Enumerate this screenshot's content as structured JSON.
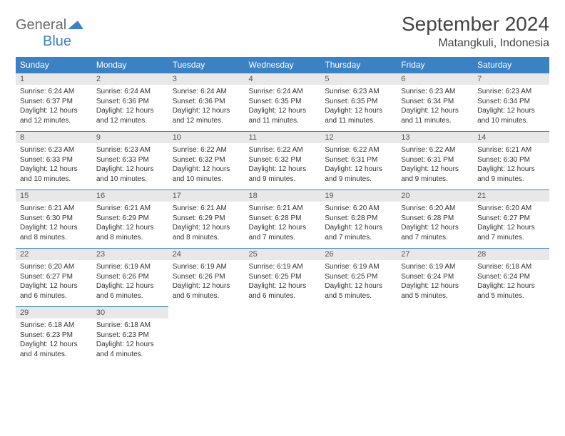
{
  "logo": {
    "word1": "General",
    "word2": "Blue"
  },
  "title": "September 2024",
  "location": "Matangkuli, Indonesia",
  "colors": {
    "header_bg": "#3b82c4",
    "header_text": "#ffffff",
    "daynum_bg": "#e8e8e8",
    "daynum_border": "#3b82c4",
    "body_text": "#333333",
    "title_text": "#444444",
    "logo_gray": "#6b6b6b",
    "logo_blue": "#3b82c4",
    "page_bg": "#ffffff"
  },
  "typography": {
    "title_fontsize": 28,
    "location_fontsize": 16,
    "header_fontsize": 12,
    "daynum_fontsize": 11,
    "body_fontsize": 10
  },
  "layout": {
    "columns": 7,
    "rows": 5,
    "start_weekday": 0
  },
  "weekdays": [
    "Sunday",
    "Monday",
    "Tuesday",
    "Wednesday",
    "Thursday",
    "Friday",
    "Saturday"
  ],
  "days": [
    {
      "n": "1",
      "sunrise": "6:24 AM",
      "sunset": "6:37 PM",
      "daylight": "12 hours and 12 minutes."
    },
    {
      "n": "2",
      "sunrise": "6:24 AM",
      "sunset": "6:36 PM",
      "daylight": "12 hours and 12 minutes."
    },
    {
      "n": "3",
      "sunrise": "6:24 AM",
      "sunset": "6:36 PM",
      "daylight": "12 hours and 12 minutes."
    },
    {
      "n": "4",
      "sunrise": "6:24 AM",
      "sunset": "6:35 PM",
      "daylight": "12 hours and 11 minutes."
    },
    {
      "n": "5",
      "sunrise": "6:23 AM",
      "sunset": "6:35 PM",
      "daylight": "12 hours and 11 minutes."
    },
    {
      "n": "6",
      "sunrise": "6:23 AM",
      "sunset": "6:34 PM",
      "daylight": "12 hours and 11 minutes."
    },
    {
      "n": "7",
      "sunrise": "6:23 AM",
      "sunset": "6:34 PM",
      "daylight": "12 hours and 10 minutes."
    },
    {
      "n": "8",
      "sunrise": "6:23 AM",
      "sunset": "6:33 PM",
      "daylight": "12 hours and 10 minutes."
    },
    {
      "n": "9",
      "sunrise": "6:23 AM",
      "sunset": "6:33 PM",
      "daylight": "12 hours and 10 minutes."
    },
    {
      "n": "10",
      "sunrise": "6:22 AM",
      "sunset": "6:32 PM",
      "daylight": "12 hours and 10 minutes."
    },
    {
      "n": "11",
      "sunrise": "6:22 AM",
      "sunset": "6:32 PM",
      "daylight": "12 hours and 9 minutes."
    },
    {
      "n": "12",
      "sunrise": "6:22 AM",
      "sunset": "6:31 PM",
      "daylight": "12 hours and 9 minutes."
    },
    {
      "n": "13",
      "sunrise": "6:22 AM",
      "sunset": "6:31 PM",
      "daylight": "12 hours and 9 minutes."
    },
    {
      "n": "14",
      "sunrise": "6:21 AM",
      "sunset": "6:30 PM",
      "daylight": "12 hours and 9 minutes."
    },
    {
      "n": "15",
      "sunrise": "6:21 AM",
      "sunset": "6:30 PM",
      "daylight": "12 hours and 8 minutes."
    },
    {
      "n": "16",
      "sunrise": "6:21 AM",
      "sunset": "6:29 PM",
      "daylight": "12 hours and 8 minutes."
    },
    {
      "n": "17",
      "sunrise": "6:21 AM",
      "sunset": "6:29 PM",
      "daylight": "12 hours and 8 minutes."
    },
    {
      "n": "18",
      "sunrise": "6:21 AM",
      "sunset": "6:28 PM",
      "daylight": "12 hours and 7 minutes."
    },
    {
      "n": "19",
      "sunrise": "6:20 AM",
      "sunset": "6:28 PM",
      "daylight": "12 hours and 7 minutes."
    },
    {
      "n": "20",
      "sunrise": "6:20 AM",
      "sunset": "6:28 PM",
      "daylight": "12 hours and 7 minutes."
    },
    {
      "n": "21",
      "sunrise": "6:20 AM",
      "sunset": "6:27 PM",
      "daylight": "12 hours and 7 minutes."
    },
    {
      "n": "22",
      "sunrise": "6:20 AM",
      "sunset": "6:27 PM",
      "daylight": "12 hours and 6 minutes."
    },
    {
      "n": "23",
      "sunrise": "6:19 AM",
      "sunset": "6:26 PM",
      "daylight": "12 hours and 6 minutes."
    },
    {
      "n": "24",
      "sunrise": "6:19 AM",
      "sunset": "6:26 PM",
      "daylight": "12 hours and 6 minutes."
    },
    {
      "n": "25",
      "sunrise": "6:19 AM",
      "sunset": "6:25 PM",
      "daylight": "12 hours and 6 minutes."
    },
    {
      "n": "26",
      "sunrise": "6:19 AM",
      "sunset": "6:25 PM",
      "daylight": "12 hours and 5 minutes."
    },
    {
      "n": "27",
      "sunrise": "6:19 AM",
      "sunset": "6:24 PM",
      "daylight": "12 hours and 5 minutes."
    },
    {
      "n": "28",
      "sunrise": "6:18 AM",
      "sunset": "6:24 PM",
      "daylight": "12 hours and 5 minutes."
    },
    {
      "n": "29",
      "sunrise": "6:18 AM",
      "sunset": "6:23 PM",
      "daylight": "12 hours and 4 minutes."
    },
    {
      "n": "30",
      "sunrise": "6:18 AM",
      "sunset": "6:23 PM",
      "daylight": "12 hours and 4 minutes."
    }
  ],
  "labels": {
    "sunrise": "Sunrise:",
    "sunset": "Sunset:",
    "daylight": "Daylight:"
  }
}
